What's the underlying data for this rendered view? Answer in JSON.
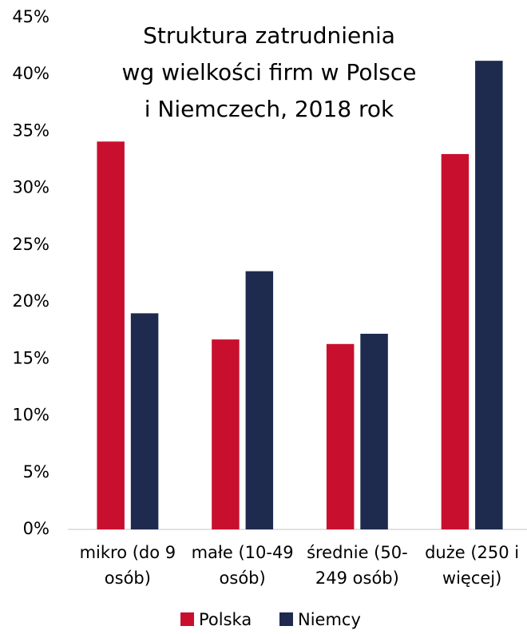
{
  "chart_data": {
    "type": "bar",
    "title": "Struktura zatrudnienia\nwg wielkości firm w Polsce\ni Niemczech, 2018 rok",
    "categories": [
      "mikro (do 9\nosób)",
      "małe (10-49\nosób)",
      "średnie (50-\n249 osób)",
      "duże (250 i\nwięcej)"
    ],
    "series": [
      {
        "name": "Polska",
        "color": "#c8102e",
        "values": [
          34.1,
          16.7,
          16.3,
          33.0
        ]
      },
      {
        "name": "Niemcy",
        "color": "#1f2a4f",
        "values": [
          19.0,
          22.7,
          17.2,
          41.2
        ]
      }
    ],
    "ylim": [
      0,
      45
    ],
    "yticks": [
      {
        "value": 0,
        "label": "0%"
      },
      {
        "value": 5,
        "label": "5%"
      },
      {
        "value": 10,
        "label": "10%"
      },
      {
        "value": 15,
        "label": "15%"
      },
      {
        "value": 20,
        "label": "20%"
      },
      {
        "value": 25,
        "label": "25%"
      },
      {
        "value": 30,
        "label": "30%"
      },
      {
        "value": 35,
        "label": "35%"
      },
      {
        "value": 40,
        "label": "40%"
      },
      {
        "value": 45,
        "label": "45%"
      }
    ],
    "legend": "bottom"
  }
}
